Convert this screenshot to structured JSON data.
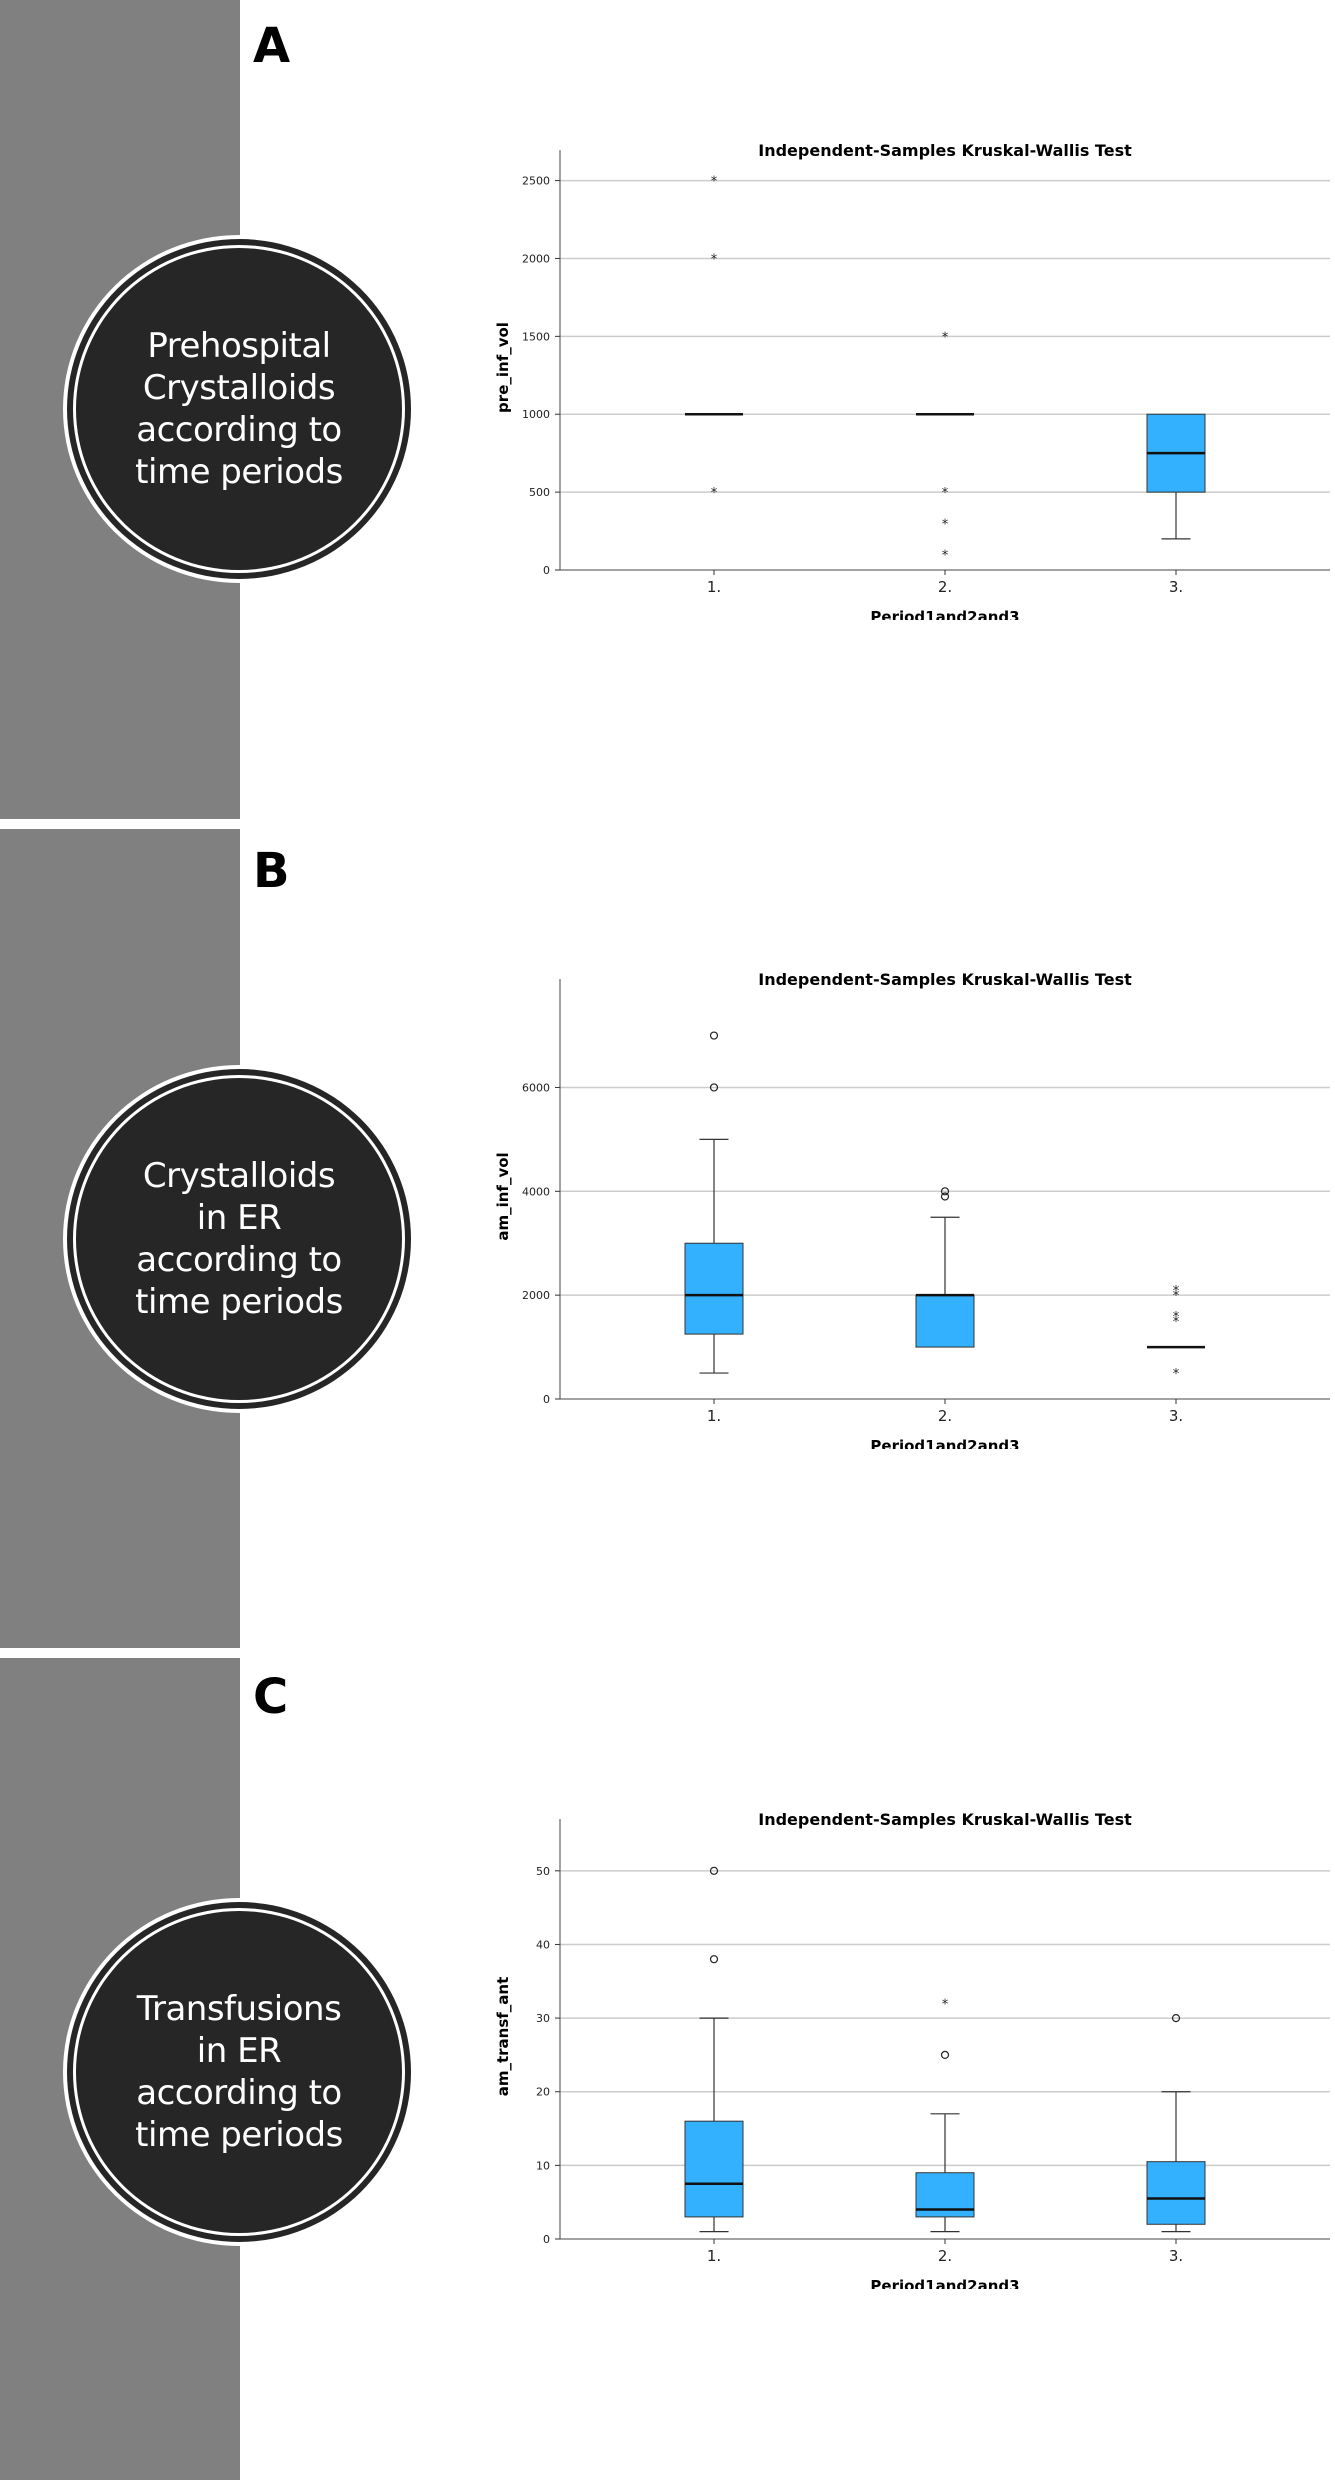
{
  "panels": [
    {
      "letter": "A",
      "badge_text": "Prehospital Crystalloids according to time periods"
    },
    {
      "letter": "B",
      "badge_text": "Crystalloids in ER according to time periods"
    },
    {
      "letter": "C",
      "badge_text": "Transfusions in ER according to time periods"
    }
  ],
  "colors": {
    "sidebar": "#808080",
    "badge": "#262626",
    "box_fill": "#33b1ff",
    "grid": "#cccccc"
  },
  "chart_data": [
    {
      "type": "box",
      "title": "Independent-Samples Kruskal-Wallis Test",
      "xlabel": "Period1and2and3",
      "ylabel": "pre_inf_vol",
      "categories": [
        "1.",
        "2.",
        "3."
      ],
      "ylim": [
        0,
        2600
      ],
      "yticks": [
        0,
        500,
        1000,
        1500,
        2000,
        2500
      ],
      "grid": true,
      "boxes": [
        {
          "min": 1000,
          "q1": 1000,
          "median": 1000,
          "q3": 1000,
          "max": 1000,
          "outliers": [],
          "extremes": [
            2500,
            2000,
            500
          ]
        },
        {
          "min": 1000,
          "q1": 1000,
          "median": 1000,
          "q3": 1000,
          "max": 1000,
          "outliers": [],
          "extremes": [
            1500,
            500,
            300,
            100
          ]
        },
        {
          "min": 200,
          "q1": 500,
          "median": 750,
          "q3": 1000,
          "max": 1000,
          "outliers": [],
          "extremes": []
        }
      ]
    },
    {
      "type": "box",
      "title": "Independent-Samples Kruskal-Wallis Test",
      "xlabel": "Period1and2and3",
      "ylabel": "am_inf_vol",
      "categories": [
        "1.",
        "2.",
        "3."
      ],
      "ylim": [
        0,
        7800
      ],
      "yticks": [
        0,
        2000,
        4000,
        6000
      ],
      "grid": true,
      "boxes": [
        {
          "min": 500,
          "q1": 1250,
          "median": 2000,
          "q3": 3000,
          "max": 5000,
          "outliers": [
            7000,
            6000
          ],
          "extremes": []
        },
        {
          "min": 1000,
          "q1": 1000,
          "median": 2000,
          "q3": 2000,
          "max": 3500,
          "outliers": [
            4000,
            3900
          ],
          "extremes": []
        },
        {
          "min": 1000,
          "q1": 1000,
          "median": 1000,
          "q3": 1000,
          "max": 1000,
          "outliers": [],
          "extremes": [
            2100,
            2000,
            1600,
            1500,
            500
          ]
        }
      ]
    },
    {
      "type": "box",
      "title": "Independent-Samples Kruskal-Wallis Test",
      "xlabel": "Period1and2and3",
      "ylabel": "am_transf_ant",
      "categories": [
        "1.",
        "2.",
        "3."
      ],
      "ylim": [
        0,
        55
      ],
      "yticks": [
        0,
        10,
        20,
        30,
        40,
        50
      ],
      "grid": true,
      "boxes": [
        {
          "min": 1,
          "q1": 3,
          "median": 7.5,
          "q3": 16,
          "max": 30,
          "outliers": [
            50,
            38
          ],
          "extremes": []
        },
        {
          "min": 1,
          "q1": 3,
          "median": 4,
          "q3": 9,
          "max": 17,
          "outliers": [
            25
          ],
          "extremes": [
            32
          ]
        },
        {
          "min": 1,
          "q1": 2,
          "median": 5.5,
          "q3": 10.5,
          "max": 20,
          "outliers": [
            30
          ],
          "extremes": []
        }
      ]
    }
  ]
}
